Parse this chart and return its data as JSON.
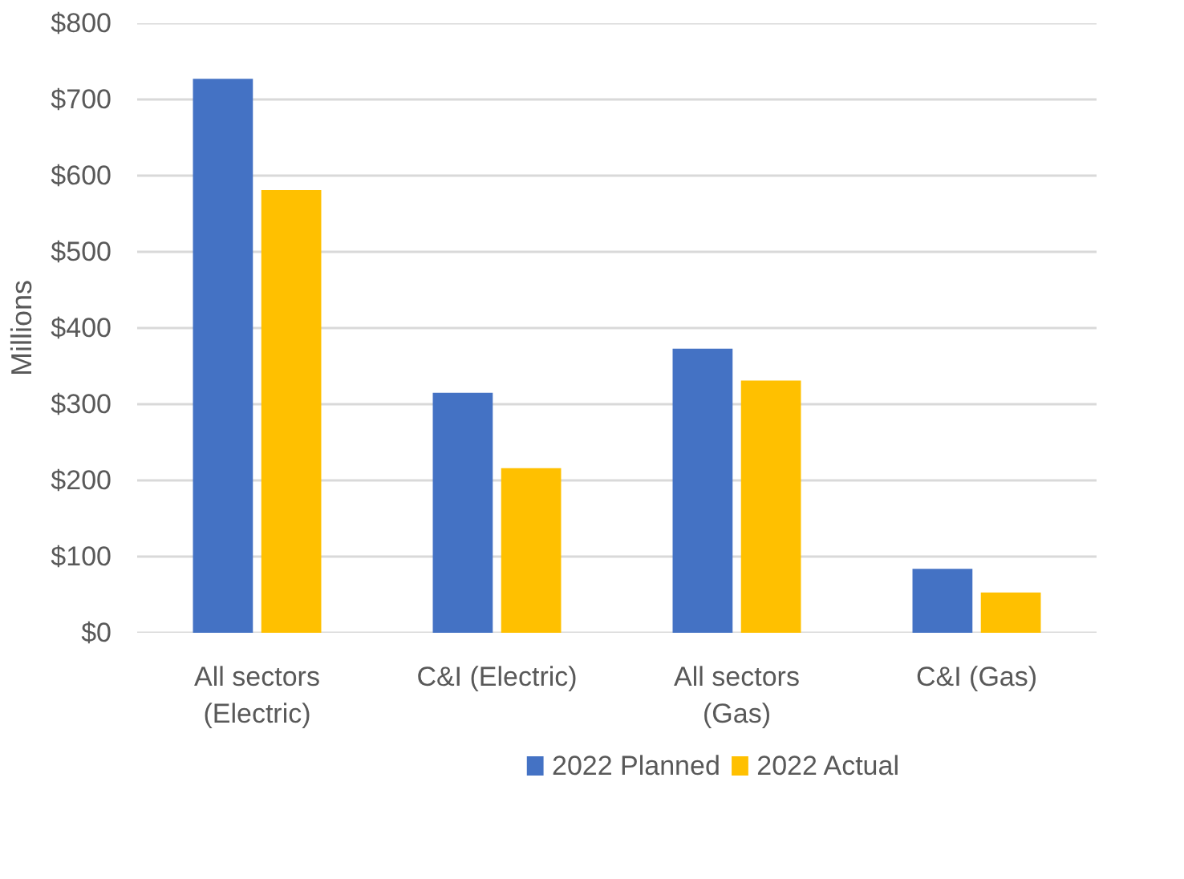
{
  "chart_data": {
    "type": "bar",
    "ylabel": "Millions",
    "categories": [
      "All sectors (Electric)",
      "C&I (Electric)",
      "All sectors (Gas)",
      "C&I (Gas)"
    ],
    "series": [
      {
        "name": "2022 Planned",
        "color": "#4472c4",
        "values": [
          727,
          315,
          373,
          84
        ]
      },
      {
        "name": "2022 Actual",
        "color": "#ffc000",
        "values": [
          581,
          216,
          331,
          53
        ]
      }
    ],
    "ylim": [
      0,
      800
    ],
    "yticks": [
      {
        "value": 0,
        "label": "$0"
      },
      {
        "value": 100,
        "label": "$100"
      },
      {
        "value": 200,
        "label": "$200"
      },
      {
        "value": 300,
        "label": "$300"
      },
      {
        "value": 400,
        "label": "$400"
      },
      {
        "value": 500,
        "label": "$500"
      },
      {
        "value": 600,
        "label": "$600"
      },
      {
        "value": 700,
        "label": "$700"
      },
      {
        "value": 800,
        "label": "$800"
      }
    ],
    "grid": "y",
    "legend": "bottom"
  }
}
